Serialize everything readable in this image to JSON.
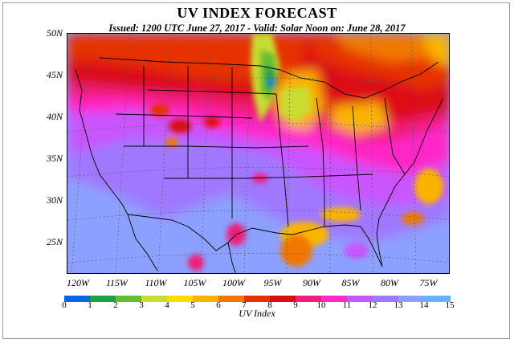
{
  "title": "UV INDEX FORECAST",
  "subtitle": "Issued: 1200 UTC June 27, 2017  -  Valid: Solar Noon on: June 28, 2017",
  "map": {
    "lat_labels": [
      {
        "label": "50N",
        "lat": 50
      },
      {
        "label": "45N",
        "lat": 45
      },
      {
        "label": "40N",
        "lat": 40
      },
      {
        "label": "35N",
        "lat": 35
      },
      {
        "label": "30N",
        "lat": 30
      },
      {
        "label": "25N",
        "lat": 25
      }
    ],
    "lon_labels": [
      "120W",
      "115W",
      "110W",
      "105W",
      "100W",
      "95W",
      "90W",
      "85W",
      "80W",
      "75W"
    ],
    "colors": {
      "background": "#8ca0ff",
      "coastline": "#000000",
      "gridline": "#555555"
    }
  },
  "colorbar": {
    "title": "UV Index",
    "ticks": [
      "0",
      "1",
      "2",
      "3",
      "4",
      "5",
      "6",
      "7",
      "8",
      "9",
      "10",
      "11",
      "12",
      "13",
      "14",
      "15"
    ],
    "colors": [
      "#0a64e6",
      "#1ea046",
      "#64be32",
      "#c8dc32",
      "#fadc00",
      "#fab400",
      "#f07800",
      "#e63200",
      "#dc0a14",
      "#f01e78",
      "#ff28c8",
      "#c855ff",
      "#a078ff",
      "#8ca0ff",
      "#64b4ff"
    ]
  }
}
